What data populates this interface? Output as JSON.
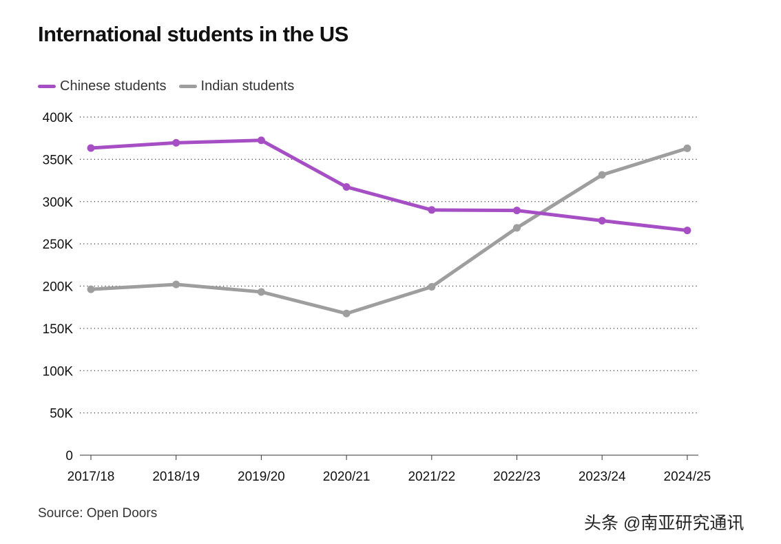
{
  "chart_data": {
    "type": "line",
    "title": "International students in the US",
    "categories": [
      "2017/18",
      "2018/19",
      "2019/20",
      "2020/21",
      "2021/22",
      "2022/23",
      "2023/24",
      "2024/25"
    ],
    "series": [
      {
        "name": "Chinese students",
        "color": "#a64fc4",
        "values": [
          363341,
          369548,
          372532,
          317299,
          290086,
          289526,
          277398,
          265919
        ]
      },
      {
        "name": "Indian students",
        "color": "#9e9e9e",
        "values": [
          196271,
          202014,
          193124,
          167582,
          199182,
          268923,
          331602,
          363019
        ]
      }
    ],
    "yticks": [
      0,
      50000,
      100000,
      150000,
      200000,
      250000,
      300000,
      350000,
      400000
    ],
    "ytick_labels": [
      "0",
      "50K",
      "100K",
      "150K",
      "200K",
      "250K",
      "300K",
      "350K",
      "400K"
    ],
    "ylim": [
      0,
      400000
    ],
    "grid": "horizontal dotted",
    "legend": "top-left",
    "source": "Source: Open Doors"
  },
  "watermark": "头条 @南亚研究通讯"
}
